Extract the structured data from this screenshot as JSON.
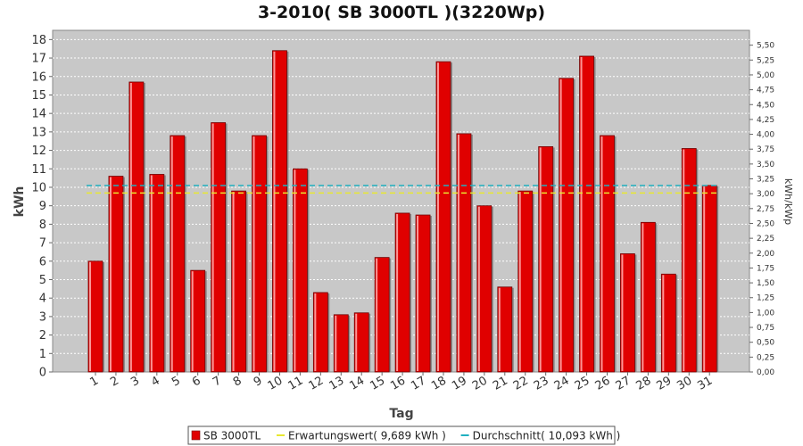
{
  "chart_data": {
    "type": "bar",
    "title": "3-2010( SB 3000TL )(3220Wp)",
    "xlabel": "Tag",
    "ylabel": "kWh",
    "ylabel_right": "kWh/kWp",
    "ylim": [
      0,
      18.5
    ],
    "ylim_right": [
      0,
      5.75
    ],
    "y_ticks": [
      "0",
      "1",
      "2",
      "3",
      "4",
      "5",
      "6",
      "7",
      "8",
      "9",
      "10",
      "11",
      "12",
      "13",
      "14",
      "15",
      "16",
      "17",
      "18"
    ],
    "y_right_ticks": [
      "0,00",
      "0,25",
      "0,50",
      "0,75",
      "1,00",
      "1,25",
      "1,50",
      "1,75",
      "2,00",
      "2,25",
      "2,50",
      "2,75",
      "3,00",
      "3,25",
      "3,50",
      "3,75",
      "4,00",
      "4,25",
      "4,50",
      "4,75",
      "5,00",
      "5,25",
      "5,50"
    ],
    "categories": [
      "1",
      "2",
      "3",
      "4",
      "5",
      "6",
      "7",
      "8",
      "9",
      "10",
      "11",
      "12",
      "13",
      "14",
      "15",
      "16",
      "17",
      "18",
      "19",
      "20",
      "21",
      "22",
      "23",
      "24",
      "25",
      "26",
      "27",
      "28",
      "29",
      "30",
      "31"
    ],
    "series": [
      {
        "name": "SB 3000TL",
        "color": "#e00000",
        "values": [
          6.0,
          10.6,
          15.7,
          10.7,
          12.8,
          5.5,
          13.5,
          9.8,
          12.8,
          17.4,
          11.0,
          4.3,
          3.1,
          3.2,
          6.2,
          8.6,
          8.5,
          16.8,
          12.9,
          9.0,
          4.6,
          9.8,
          12.2,
          15.9,
          17.1,
          12.8,
          6.4,
          8.1,
          5.3,
          12.1,
          10.1
        ]
      }
    ],
    "reference_lines": [
      {
        "name": "Erwartungswert( 9,689 kWh )",
        "value": 9.689,
        "color": "#e8e830"
      },
      {
        "name": "Durchschnitt( 10,093 kWh )",
        "value": 10.093,
        "color": "#20b0c0"
      }
    ],
    "legend_position": "bottom",
    "grid": true,
    "plot_background": "#c8c8c8"
  }
}
